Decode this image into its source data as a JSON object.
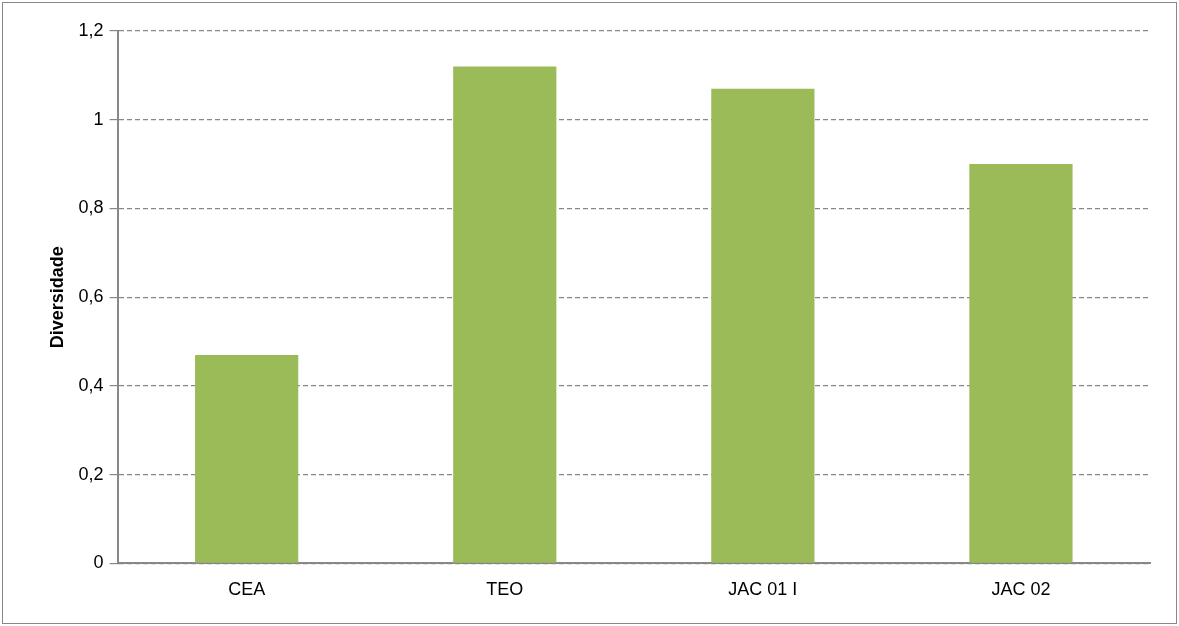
{
  "chart_data": {
    "type": "bar",
    "ylabel": "Diversidade",
    "categories": [
      "CEA",
      "TEO",
      "JAC 01 I",
      "JAC 02"
    ],
    "values": [
      0.47,
      1.12,
      1.07,
      0.9
    ],
    "color": "#9bbb59",
    "ylim": [
      0,
      1.2
    ],
    "yticks": [
      0,
      {
        "value": 0.2,
        "label": "0,2"
      },
      {
        "value": 0.4,
        "label": "0,4"
      },
      {
        "value": 0.6,
        "label": "0,6"
      },
      {
        "value": 0.8,
        "label": "0,8"
      },
      1,
      {
        "value": 1.2,
        "label": "1,2"
      }
    ],
    "grid": "y",
    "legend": false
  }
}
